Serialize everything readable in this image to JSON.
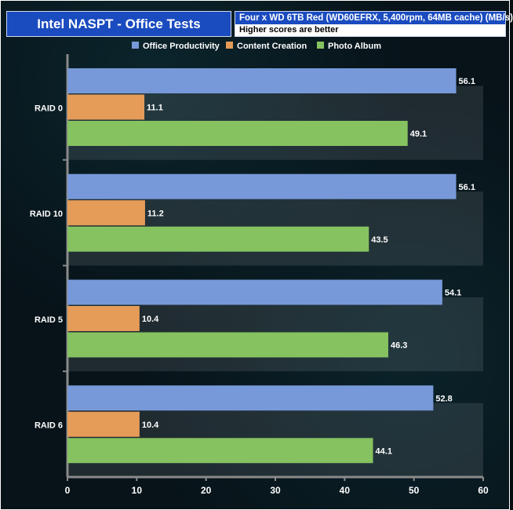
{
  "chart_data": {
    "type": "bar",
    "orientation": "horizontal",
    "title": "Intel NASPT - Office Tests",
    "subtitle": "Four x WD 6TB Red (WD60EFRX, 5,400rpm, 64MB cache) (MB/s)",
    "note": "Higher scores are better",
    "categories": [
      "RAID 0",
      "RAID 10",
      "RAID 5",
      "RAID 6"
    ],
    "series": [
      {
        "name": "Office Productivity",
        "color": "#7799d9",
        "values": [
          56.1,
          56.1,
          54.1,
          52.8
        ]
      },
      {
        "name": "Content Creation",
        "color": "#e59c58",
        "values": [
          11.1,
          11.2,
          10.4,
          10.4
        ]
      },
      {
        "name": "Photo Album",
        "color": "#86c260",
        "values": [
          49.1,
          43.5,
          46.3,
          44.1
        ]
      }
    ],
    "xlim": [
      0,
      60
    ],
    "xticks": [
      0,
      10,
      20,
      30,
      40,
      50,
      60
    ],
    "legend_position": "top",
    "grid": false
  }
}
